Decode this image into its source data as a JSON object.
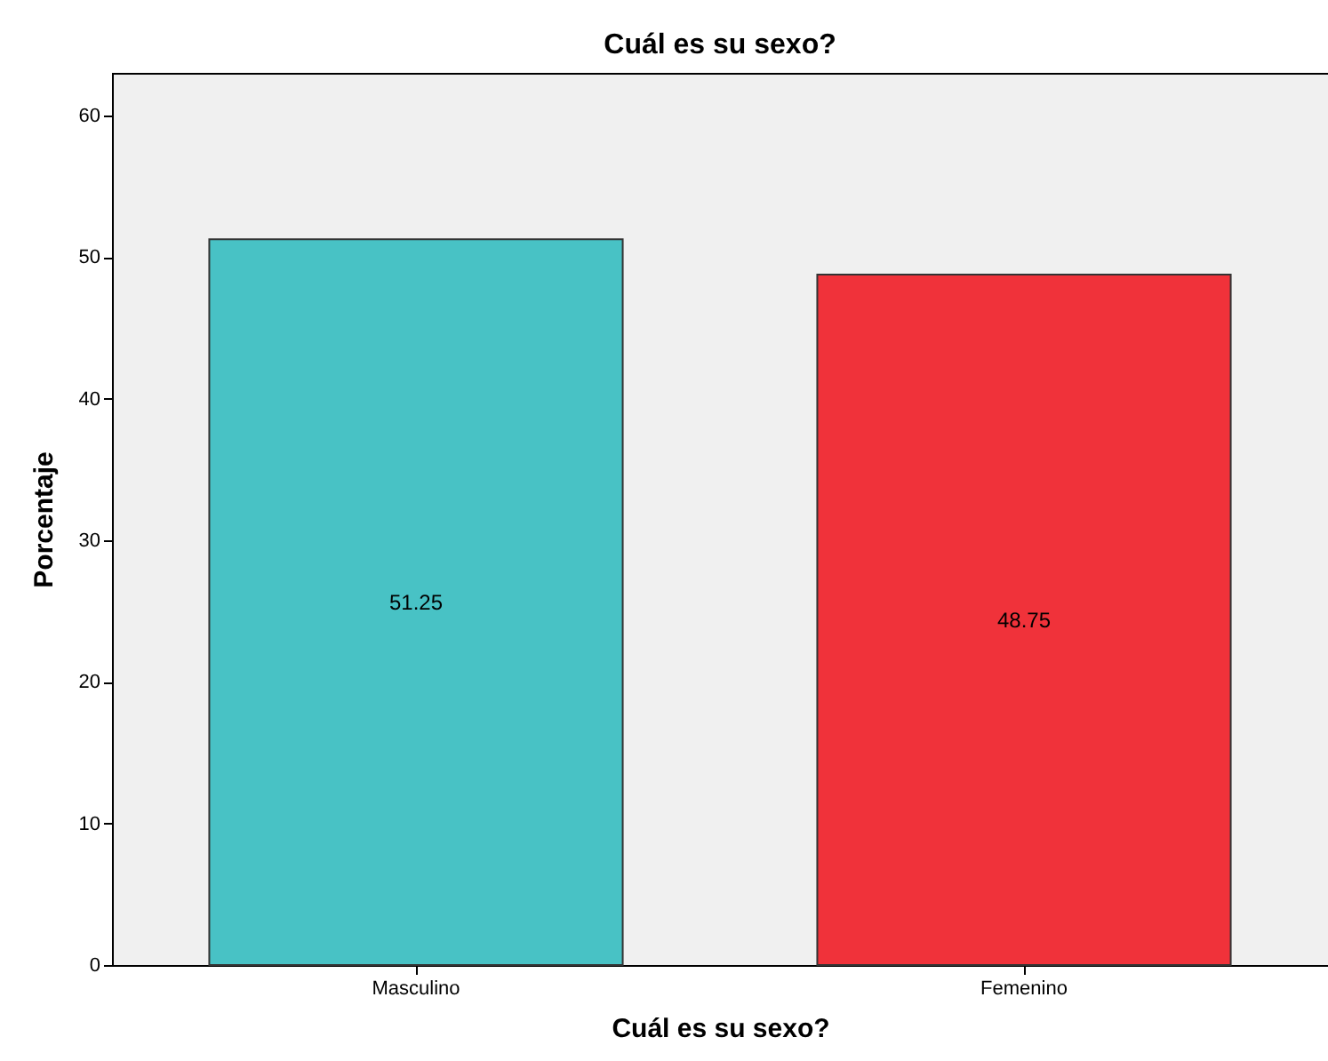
{
  "chart_data": {
    "type": "bar",
    "title": "Cuál es su sexo?",
    "xlabel": "Cuál es su sexo?",
    "ylabel": "Porcentaje",
    "categories": [
      "Masculino",
      "Femenino"
    ],
    "values": [
      51.25,
      48.75
    ],
    "colors": [
      "#48c2c5",
      "#f0323a"
    ],
    "ylim": [
      0,
      63
    ],
    "yticks": [
      0,
      10,
      20,
      30,
      40,
      50,
      60
    ],
    "grid": false,
    "data_labels": true
  }
}
